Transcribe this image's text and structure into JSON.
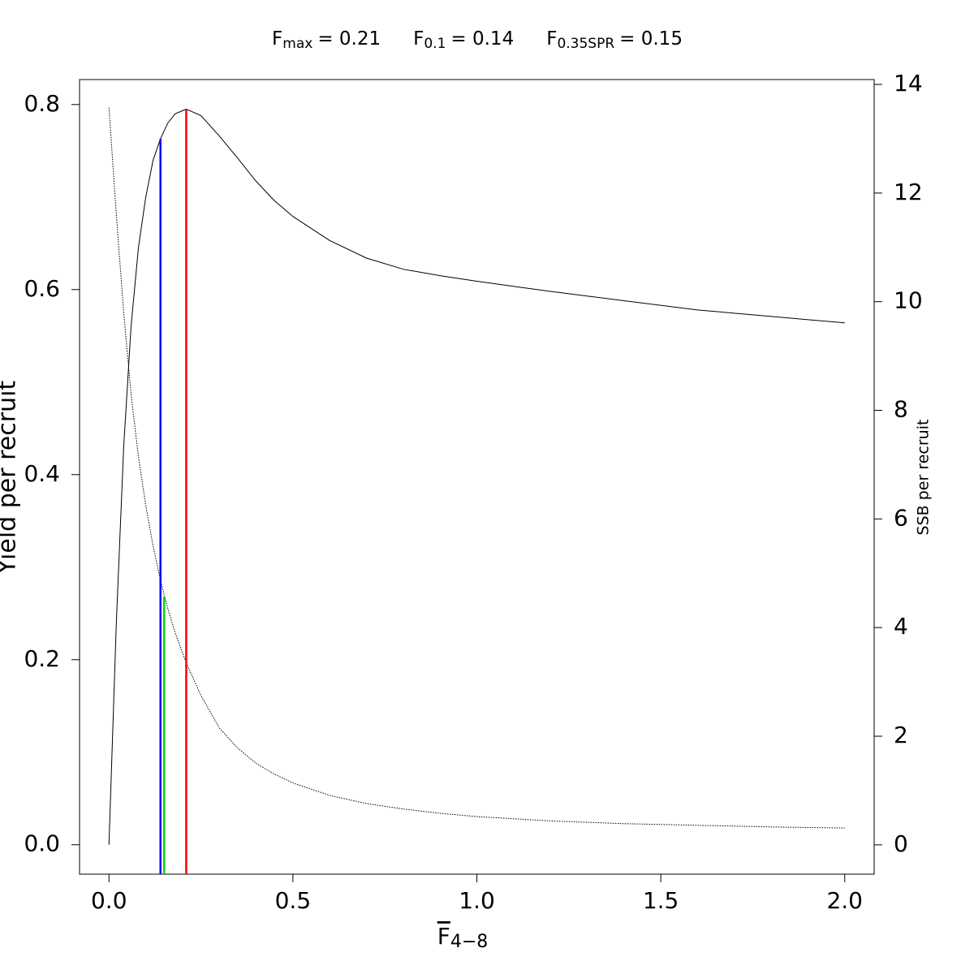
{
  "chart_data": {
    "type": "line",
    "title_parts": [
      {
        "main": "F",
        "sub": "max",
        "rest": "= 0.21"
      },
      {
        "main": "F",
        "sub": "0.1",
        "rest": "= 0.14"
      },
      {
        "main": "F",
        "sub": "0.35SPR",
        "rest": "= 0.15"
      }
    ],
    "x_label": {
      "main": "F",
      "sub": "4−8"
    },
    "y_label": "Yield per recruit",
    "y2_label": "SSB per recruit",
    "x": [
      0,
      0.02,
      0.04,
      0.06,
      0.08,
      0.1,
      0.12,
      0.14,
      0.16,
      0.18,
      0.21,
      0.25,
      0.3,
      0.35,
      0.4,
      0.45,
      0.5,
      0.6,
      0.7,
      0.8,
      0.9,
      1.0,
      1.2,
      1.4,
      1.6,
      1.8,
      2.0
    ],
    "series": [
      {
        "color": "#000000",
        "dash": "solid",
        "values": [
          0,
          0.24,
          0.43,
          0.56,
          0.645,
          0.7,
          0.74,
          0.763,
          0.78,
          0.79,
          0.795,
          0.788,
          0.766,
          0.742,
          0.717,
          0.696,
          0.679,
          0.653,
          0.634,
          0.622,
          0.615,
          0.609,
          0.598,
          0.588,
          0.578,
          0.571,
          0.564
        ]
      },
      {
        "color": "#000000",
        "dash": "dotted",
        "axis": "y2",
        "values": [
          13.57,
          11.6,
          9.8,
          8.3,
          7.15,
          6.25,
          5.5,
          4.87,
          4.35,
          3.9,
          3.35,
          2.75,
          2.15,
          1.78,
          1.5,
          1.3,
          1.14,
          0.91,
          0.76,
          0.66,
          0.58,
          0.52,
          0.44,
          0.39,
          0.36,
          0.33,
          0.31
        ]
      }
    ],
    "reference_lines": [
      {
        "x": 0.14,
        "top": 0.763,
        "color": "#0000ff"
      },
      {
        "x": 0.15,
        "top": 4.57,
        "axis": "y2",
        "color": "#00dd00"
      },
      {
        "x": 0.21,
        "top": 0.795,
        "color": "#ff0000"
      }
    ],
    "xlim": [
      -0.08,
      2.08
    ],
    "xticks": [
      {
        "value": 0,
        "label": "0.0"
      },
      0.5,
      {
        "value": 1,
        "label": "1.0"
      },
      1.5,
      {
        "value": 2,
        "label": "2.0"
      }
    ],
    "ylim": [
      -0.0318,
      0.827
    ],
    "yticks": [
      {
        "value": 0,
        "label": "0.0"
      },
      0.2,
      0.4,
      0.6,
      0.8
    ],
    "y2lim": [
      -0.54,
      14.09
    ],
    "y2ticks": [
      0,
      2,
      4,
      6,
      8,
      10,
      12,
      14
    ]
  }
}
